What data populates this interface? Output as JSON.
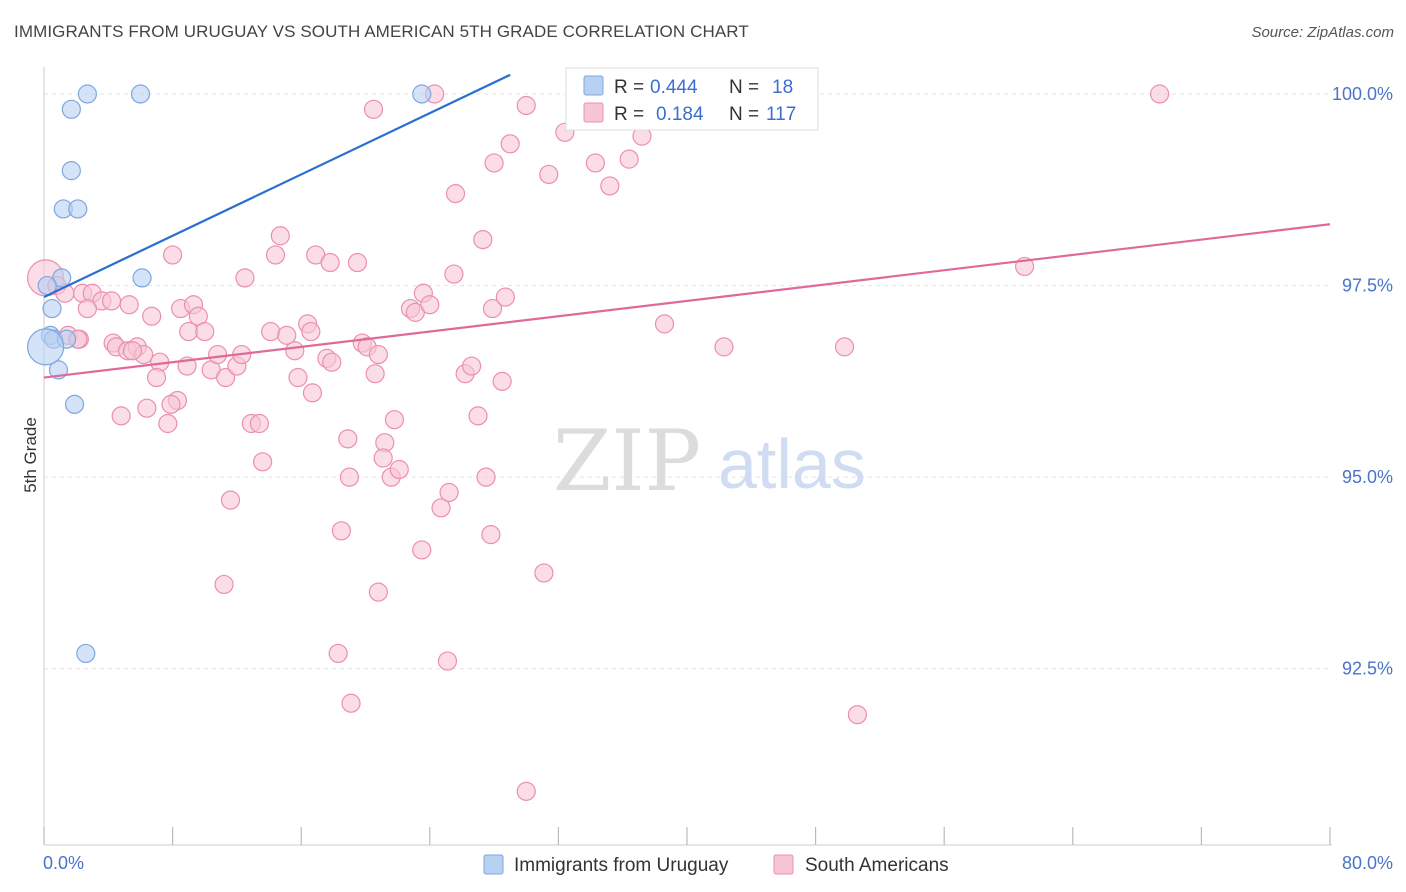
{
  "title": "IMMIGRANTS FROM URUGUAY VS SOUTH AMERICAN 5TH GRADE CORRELATION CHART",
  "source": "Source: ZipAtlas.com",
  "watermark": {
    "zip": "ZIP",
    "atlas": "atlas"
  },
  "colors": {
    "blue_fill": "#b8d1f2",
    "blue_stroke": "#7fa6df",
    "blue_line": "#2a6fd0",
    "pink_fill": "#f7c6d6",
    "pink_stroke": "#ec8fae",
    "pink_line": "#e0689a",
    "tick_text": "#4a74c9",
    "grid": "#e3e3e3"
  },
  "legend": {
    "rows": [
      {
        "r_label": "R =",
        "r_value": "0.444",
        "n_label": "N =",
        "n_value": "18"
      },
      {
        "r_label": "R =",
        "r_value": "0.184",
        "n_label": "N =",
        "n_value": "117"
      }
    ]
  },
  "chart_data": {
    "type": "scatter",
    "title": "IMMIGRANTS FROM URUGUAY VS SOUTH AMERICAN 5TH GRADE CORRELATION CHART",
    "xlabel": "",
    "ylabel": "5th Grade",
    "xlim": [
      0,
      80
    ],
    "ylim": [
      90.2,
      100.3
    ],
    "x_ticks": [
      {
        "value": 0,
        "label": "0.0%"
      },
      {
        "value": 80,
        "label": "80.0%"
      }
    ],
    "y_ticks": [
      {
        "value": 100,
        "label": "100.0%"
      },
      {
        "value": 97.5,
        "label": "97.5%"
      },
      {
        "value": 95,
        "label": "95.0%"
      },
      {
        "value": 92.5,
        "label": "92.5%"
      }
    ],
    "x_minor_ticks": [
      0,
      8,
      16,
      24,
      32,
      40,
      48,
      56,
      64,
      72,
      80
    ],
    "grid": true,
    "legend_placement": "top-center",
    "series": [
      {
        "name": "Immigrants from Uruguay",
        "color": "blue",
        "trend": {
          "x": [
            0,
            29
          ],
          "y": [
            97.35,
            100.25
          ]
        },
        "points": [
          {
            "x": 2.7,
            "y": 100.0,
            "s": 9
          },
          {
            "x": 6.0,
            "y": 100.0,
            "s": 9
          },
          {
            "x": 23.5,
            "y": 100.0,
            "s": 9
          },
          {
            "x": 1.7,
            "y": 99.8,
            "s": 9
          },
          {
            "x": 1.7,
            "y": 99.0,
            "s": 9
          },
          {
            "x": 1.2,
            "y": 98.5,
            "s": 9
          },
          {
            "x": 2.1,
            "y": 98.5,
            "s": 9
          },
          {
            "x": 6.1,
            "y": 97.6,
            "s": 9
          },
          {
            "x": 1.1,
            "y": 97.6,
            "s": 9
          },
          {
            "x": 0.5,
            "y": 97.2,
            "s": 9
          },
          {
            "x": 0.4,
            "y": 96.85,
            "s": 9
          },
          {
            "x": 0.6,
            "y": 96.8,
            "s": 9
          },
          {
            "x": 1.4,
            "y": 96.8,
            "s": 9
          },
          {
            "x": 0.9,
            "y": 96.4,
            "s": 9
          },
          {
            "x": 1.9,
            "y": 95.95,
            "s": 9
          },
          {
            "x": 0.1,
            "y": 96.7,
            "s": 18
          },
          {
            "x": 2.6,
            "y": 92.7,
            "s": 9
          },
          {
            "x": 0.2,
            "y": 97.5,
            "s": 9
          }
        ]
      },
      {
        "name": "South Americans",
        "color": "pink",
        "trend": {
          "x": [
            0,
            80
          ],
          "y": [
            96.3,
            98.3
          ]
        },
        "points": [
          {
            "x": 0.1,
            "y": 97.6,
            "s": 18
          },
          {
            "x": 0.8,
            "y": 97.5,
            "s": 9
          },
          {
            "x": 1.3,
            "y": 97.4,
            "s": 9
          },
          {
            "x": 2.4,
            "y": 97.4,
            "s": 9
          },
          {
            "x": 3.0,
            "y": 97.4,
            "s": 9
          },
          {
            "x": 3.6,
            "y": 97.3,
            "s": 9
          },
          {
            "x": 2.7,
            "y": 97.2,
            "s": 9
          },
          {
            "x": 4.2,
            "y": 97.3,
            "s": 9
          },
          {
            "x": 5.3,
            "y": 97.25,
            "s": 9
          },
          {
            "x": 1.5,
            "y": 96.85,
            "s": 9
          },
          {
            "x": 2.2,
            "y": 96.8,
            "s": 9
          },
          {
            "x": 4.3,
            "y": 96.75,
            "s": 9
          },
          {
            "x": 4.5,
            "y": 96.7,
            "s": 9
          },
          {
            "x": 5.2,
            "y": 96.65,
            "s": 9
          },
          {
            "x": 5.8,
            "y": 96.7,
            "s": 9
          },
          {
            "x": 6.2,
            "y": 96.6,
            "s": 9
          },
          {
            "x": 5.5,
            "y": 96.65,
            "s": 9
          },
          {
            "x": 6.7,
            "y": 97.1,
            "s": 9
          },
          {
            "x": 7.2,
            "y": 96.5,
            "s": 9
          },
          {
            "x": 7.0,
            "y": 96.3,
            "s": 9
          },
          {
            "x": 8.0,
            "y": 97.9,
            "s": 9
          },
          {
            "x": 8.5,
            "y": 97.2,
            "s": 9
          },
          {
            "x": 9.3,
            "y": 97.25,
            "s": 9
          },
          {
            "x": 9.6,
            "y": 97.1,
            "s": 9
          },
          {
            "x": 9.0,
            "y": 96.9,
            "s": 9
          },
          {
            "x": 10.0,
            "y": 96.9,
            "s": 9
          },
          {
            "x": 8.9,
            "y": 96.45,
            "s": 9
          },
          {
            "x": 10.4,
            "y": 96.4,
            "s": 9
          },
          {
            "x": 10.8,
            "y": 96.6,
            "s": 9
          },
          {
            "x": 11.3,
            "y": 96.3,
            "s": 9
          },
          {
            "x": 12.0,
            "y": 96.45,
            "s": 9
          },
          {
            "x": 12.3,
            "y": 96.6,
            "s": 9
          },
          {
            "x": 12.5,
            "y": 97.6,
            "s": 9
          },
          {
            "x": 6.4,
            "y": 95.9,
            "s": 9
          },
          {
            "x": 4.8,
            "y": 95.8,
            "s": 9
          },
          {
            "x": 7.7,
            "y": 95.7,
            "s": 9
          },
          {
            "x": 8.3,
            "y": 96.0,
            "s": 9
          },
          {
            "x": 12.9,
            "y": 95.7,
            "s": 9
          },
          {
            "x": 13.4,
            "y": 95.7,
            "s": 9
          },
          {
            "x": 13.6,
            "y": 95.2,
            "s": 9
          },
          {
            "x": 11.6,
            "y": 94.7,
            "s": 9
          },
          {
            "x": 11.2,
            "y": 93.6,
            "s": 9
          },
          {
            "x": 14.1,
            "y": 96.9,
            "s": 9
          },
          {
            "x": 15.1,
            "y": 96.85,
            "s": 9
          },
          {
            "x": 15.6,
            "y": 96.65,
            "s": 9
          },
          {
            "x": 15.8,
            "y": 96.3,
            "s": 9
          },
          {
            "x": 16.4,
            "y": 97.0,
            "s": 9
          },
          {
            "x": 16.6,
            "y": 96.9,
            "s": 9
          },
          {
            "x": 16.7,
            "y": 96.1,
            "s": 9
          },
          {
            "x": 14.4,
            "y": 97.9,
            "s": 9
          },
          {
            "x": 14.7,
            "y": 98.15,
            "s": 9
          },
          {
            "x": 16.9,
            "y": 97.9,
            "s": 9
          },
          {
            "x": 17.6,
            "y": 96.55,
            "s": 9
          },
          {
            "x": 17.9,
            "y": 96.5,
            "s": 9
          },
          {
            "x": 17.8,
            "y": 97.8,
            "s": 9
          },
          {
            "x": 19.5,
            "y": 97.8,
            "s": 9
          },
          {
            "x": 19.8,
            "y": 96.75,
            "s": 9
          },
          {
            "x": 20.1,
            "y": 96.7,
            "s": 9
          },
          {
            "x": 20.6,
            "y": 96.35,
            "s": 9
          },
          {
            "x": 20.8,
            "y": 96.6,
            "s": 9
          },
          {
            "x": 18.5,
            "y": 94.3,
            "s": 9
          },
          {
            "x": 18.9,
            "y": 95.5,
            "s": 9
          },
          {
            "x": 19.0,
            "y": 95.0,
            "s": 9
          },
          {
            "x": 18.3,
            "y": 92.7,
            "s": 9
          },
          {
            "x": 19.1,
            "y": 92.05,
            "s": 9
          },
          {
            "x": 20.8,
            "y": 93.5,
            "s": 9
          },
          {
            "x": 21.2,
            "y": 95.45,
            "s": 9
          },
          {
            "x": 21.1,
            "y": 95.25,
            "s": 9
          },
          {
            "x": 21.6,
            "y": 95.0,
            "s": 9
          },
          {
            "x": 22.1,
            "y": 95.1,
            "s": 9
          },
          {
            "x": 21.8,
            "y": 95.75,
            "s": 9
          },
          {
            "x": 22.8,
            "y": 97.2,
            "s": 9
          },
          {
            "x": 23.1,
            "y": 97.15,
            "s": 9
          },
          {
            "x": 23.6,
            "y": 97.4,
            "s": 9
          },
          {
            "x": 24.0,
            "y": 97.25,
            "s": 9
          },
          {
            "x": 23.5,
            "y": 94.05,
            "s": 9
          },
          {
            "x": 24.7,
            "y": 94.6,
            "s": 9
          },
          {
            "x": 25.2,
            "y": 94.8,
            "s": 9
          },
          {
            "x": 25.1,
            "y": 92.6,
            "s": 9
          },
          {
            "x": 26.2,
            "y": 96.35,
            "s": 9
          },
          {
            "x": 26.6,
            "y": 96.45,
            "s": 9
          },
          {
            "x": 27.0,
            "y": 95.8,
            "s": 9
          },
          {
            "x": 27.5,
            "y": 95.0,
            "s": 9
          },
          {
            "x": 27.8,
            "y": 94.25,
            "s": 9
          },
          {
            "x": 27.9,
            "y": 97.2,
            "s": 9
          },
          {
            "x": 28.7,
            "y": 97.35,
            "s": 9
          },
          {
            "x": 28.5,
            "y": 96.25,
            "s": 9
          },
          {
            "x": 25.6,
            "y": 98.7,
            "s": 9
          },
          {
            "x": 25.5,
            "y": 97.65,
            "s": 9
          },
          {
            "x": 27.3,
            "y": 98.1,
            "s": 9
          },
          {
            "x": 28.0,
            "y": 99.1,
            "s": 9
          },
          {
            "x": 29.0,
            "y": 99.35,
            "s": 9
          },
          {
            "x": 30.0,
            "y": 99.85,
            "s": 9
          },
          {
            "x": 31.4,
            "y": 98.95,
            "s": 9
          },
          {
            "x": 32.4,
            "y": 99.5,
            "s": 9
          },
          {
            "x": 33.2,
            "y": 100.0,
            "s": 9
          },
          {
            "x": 35.2,
            "y": 100.0,
            "s": 9
          },
          {
            "x": 36.2,
            "y": 100.0,
            "s": 9
          },
          {
            "x": 37.0,
            "y": 99.9,
            "s": 9
          },
          {
            "x": 34.3,
            "y": 99.1,
            "s": 9
          },
          {
            "x": 36.4,
            "y": 99.15,
            "s": 9
          },
          {
            "x": 35.2,
            "y": 98.8,
            "s": 9
          },
          {
            "x": 37.2,
            "y": 99.45,
            "s": 9
          },
          {
            "x": 38.0,
            "y": 99.8,
            "s": 9
          },
          {
            "x": 24.3,
            "y": 100.0,
            "s": 9
          },
          {
            "x": 20.5,
            "y": 99.8,
            "s": 9
          },
          {
            "x": 31.1,
            "y": 93.75,
            "s": 9
          },
          {
            "x": 30.0,
            "y": 90.9,
            "s": 9
          },
          {
            "x": 38.6,
            "y": 97.0,
            "s": 9
          },
          {
            "x": 42.3,
            "y": 96.7,
            "s": 9
          },
          {
            "x": 49.8,
            "y": 96.7,
            "s": 9
          },
          {
            "x": 50.6,
            "y": 91.9,
            "s": 9
          },
          {
            "x": 61.0,
            "y": 97.75,
            "s": 9
          },
          {
            "x": 69.4,
            "y": 100.0,
            "s": 9
          },
          {
            "x": 7.9,
            "y": 95.95,
            "s": 9
          },
          {
            "x": 2.1,
            "y": 96.8,
            "s": 9
          }
        ]
      }
    ]
  },
  "bottom_legend": [
    {
      "label": "Immigrants from Uruguay",
      "color": "blue"
    },
    {
      "label": "South Americans",
      "color": "pink"
    }
  ]
}
